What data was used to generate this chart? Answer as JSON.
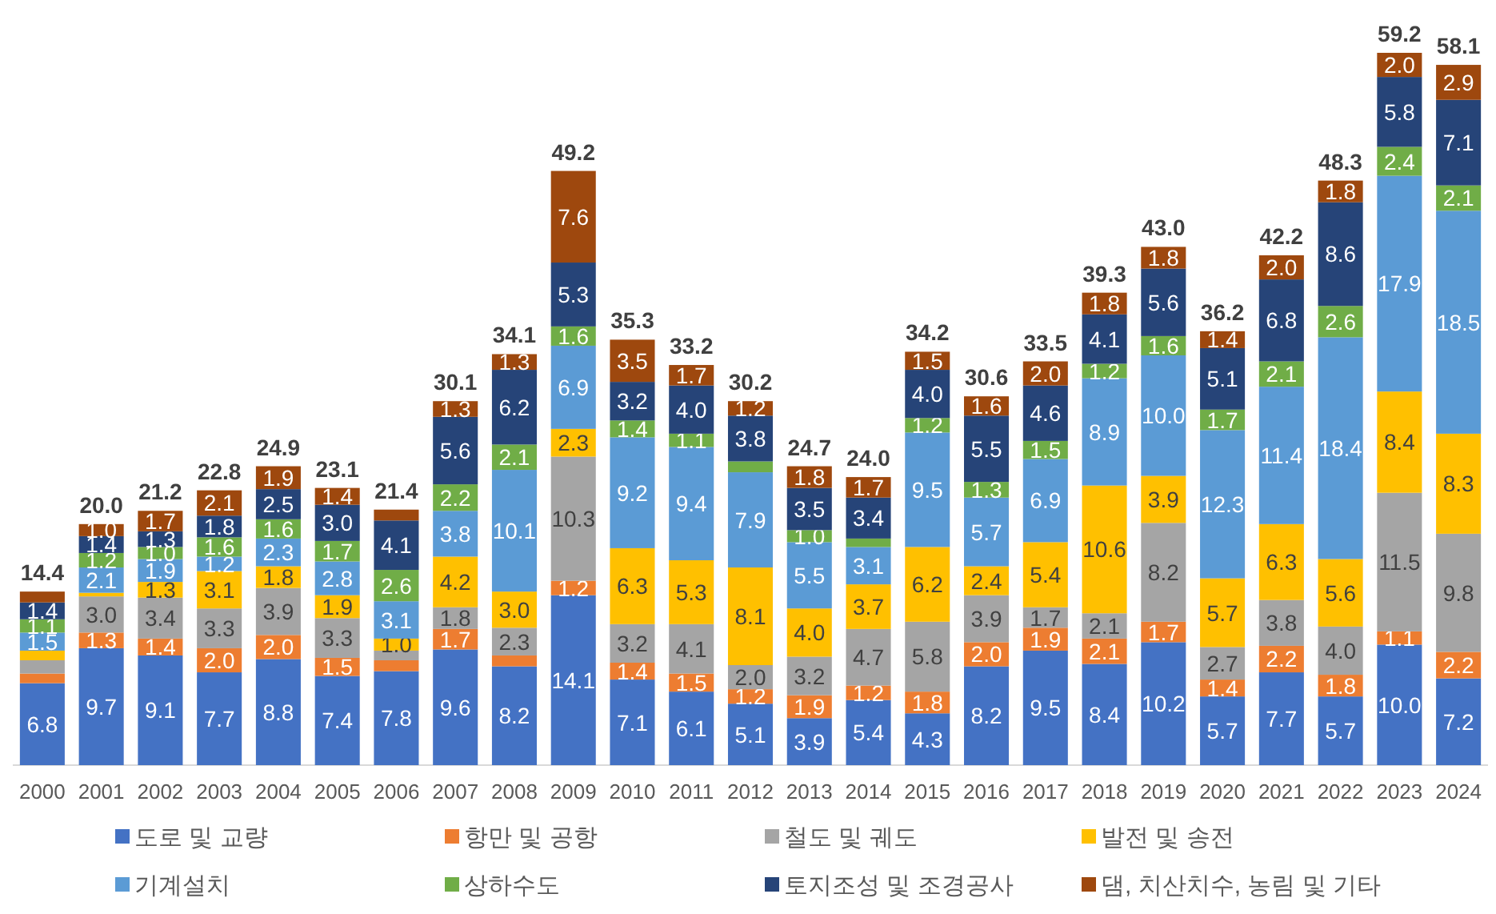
{
  "chart_data": {
    "type": "bar",
    "stacked": true,
    "legend": "bottom",
    "categories": [
      "2000",
      "2001",
      "2002",
      "2003",
      "2004",
      "2005",
      "2006",
      "2007",
      "2008",
      "2009",
      "2010",
      "2011",
      "2012",
      "2013",
      "2014",
      "2015",
      "2016",
      "2017",
      "2018",
      "2019",
      "2020",
      "2021",
      "2022",
      "2023",
      "2024"
    ],
    "series": [
      {
        "name": "도로 및 교량",
        "color": "#4472c4",
        "values": [
          6.8,
          9.7,
          9.1,
          7.7,
          8.8,
          7.4,
          7.8,
          9.6,
          8.2,
          14.1,
          7.1,
          6.1,
          5.1,
          3.9,
          5.4,
          4.3,
          8.2,
          9.5,
          8.4,
          10.2,
          5.7,
          7.7,
          5.7,
          10.0,
          7.2
        ],
        "value_labels": [
          "6.8",
          "9.7",
          "9.1",
          "7.7",
          "8.8",
          "7.4",
          "7.8",
          "9.6",
          "8.2",
          "14.1",
          "7.1",
          "6.1",
          "5.1",
          "3.9",
          "5.4",
          "4.3",
          "8.2",
          "9.5",
          "8.4",
          "10.2",
          "5.7",
          "7.7",
          "5.7",
          "10.0",
          "7.2"
        ]
      },
      {
        "name": "항만 및 공항",
        "color": "#ed7d31",
        "values": [
          0.8,
          1.3,
          1.4,
          2.0,
          2.0,
          1.5,
          0.9,
          1.7,
          0.9,
          1.2,
          1.4,
          1.5,
          1.2,
          1.9,
          1.2,
          1.8,
          2.0,
          1.9,
          2.1,
          1.7,
          1.4,
          2.2,
          1.8,
          1.1,
          2.2
        ],
        "value_labels": [
          null,
          "1.3",
          "1.4",
          "2.0",
          "2.0",
          "1.5",
          null,
          "1.7",
          null,
          "1.2",
          "1.4",
          "1.5",
          "1.2",
          "1.9",
          "1.2",
          "1.8",
          "2.0",
          "1.9",
          "2.1",
          "1.7",
          "1.4",
          "2.2",
          "1.8",
          "1.1",
          "2.2"
        ]
      },
      {
        "name": "철도 및 궤도",
        "color": "#a5a5a5",
        "values": [
          1.1,
          3.0,
          3.4,
          3.3,
          3.9,
          3.3,
          0.8,
          1.8,
          2.3,
          10.3,
          3.2,
          4.1,
          2.0,
          3.2,
          4.7,
          5.8,
          3.9,
          1.7,
          2.1,
          8.2,
          2.7,
          3.8,
          4.0,
          11.5,
          9.8
        ],
        "value_labels": [
          null,
          "3.0",
          "3.4",
          "3.3",
          "3.9",
          "3.3",
          null,
          "1.8",
          "2.3",
          "10.3",
          "3.2",
          "4.1",
          "2.0",
          "3.2",
          "4.7",
          "5.8",
          "3.9",
          "1.7",
          "2.1",
          "8.2",
          "2.7",
          "3.8",
          "4.0",
          "11.5",
          "9.8"
        ]
      },
      {
        "name": "발전 및 송전",
        "color": "#ffc000",
        "values": [
          0.8,
          0.3,
          1.3,
          3.1,
          1.8,
          1.9,
          1.0,
          4.2,
          3.0,
          2.3,
          6.3,
          5.3,
          8.1,
          4.0,
          3.7,
          6.2,
          2.4,
          5.4,
          10.6,
          3.9,
          5.7,
          6.3,
          5.6,
          8.4,
          8.3
        ],
        "value_labels": [
          null,
          null,
          "1.3",
          "3.1",
          "1.8",
          "1.9",
          "1.0",
          "4.2",
          "3.0",
          "2.3",
          "6.3",
          "5.3",
          "8.1",
          "4.0",
          "3.7",
          "6.2",
          "2.4",
          "5.4",
          "10.6",
          "3.9",
          "5.7",
          "6.3",
          "5.6",
          "8.4",
          "8.3"
        ]
      },
      {
        "name": "기계설치",
        "color": "#5b9bd5",
        "values": [
          1.5,
          2.1,
          1.9,
          1.2,
          2.3,
          2.8,
          3.1,
          3.8,
          10.1,
          6.9,
          9.2,
          9.4,
          7.9,
          5.5,
          3.1,
          9.5,
          5.7,
          6.9,
          8.9,
          10.0,
          12.3,
          11.4,
          18.4,
          17.9,
          18.5
        ],
        "value_labels": [
          "1.5",
          "2.1",
          "1.9",
          "1.2",
          "2.3",
          "2.8",
          "3.1",
          "3.8",
          "10.1",
          "6.9",
          "9.2",
          "9.4",
          "7.9",
          "5.5",
          "3.1",
          "9.5",
          "5.7",
          "6.9",
          "8.9",
          "10.0",
          "12.3",
          "11.4",
          "18.4",
          "17.9",
          "18.5"
        ]
      },
      {
        "name": "상하수도",
        "color": "#70ad47",
        "values": [
          1.1,
          1.2,
          1.0,
          1.6,
          1.6,
          1.7,
          2.6,
          2.2,
          2.1,
          1.6,
          1.4,
          1.1,
          0.9,
          1.0,
          0.7,
          1.2,
          1.3,
          1.5,
          1.2,
          1.6,
          1.7,
          2.1,
          2.6,
          2.4,
          2.1
        ],
        "value_labels": [
          "1.1",
          "1.2",
          "1.0",
          "1.6",
          "1.6",
          "1.7",
          "2.6",
          "2.2",
          "2.1",
          "1.6",
          "1.4",
          "1.1",
          null,
          "1.0",
          null,
          "1.2",
          "1.3",
          "1.5",
          "1.2",
          "1.6",
          "1.7",
          "2.1",
          "2.6",
          "2.4",
          "2.1"
        ]
      },
      {
        "name": "토지조성 및 조경공사",
        "color": "#264478",
        "values": [
          1.4,
          1.4,
          1.3,
          1.8,
          2.5,
          3.0,
          4.1,
          5.6,
          6.2,
          5.3,
          3.2,
          4.0,
          3.8,
          3.5,
          3.4,
          4.0,
          5.5,
          4.6,
          4.1,
          5.6,
          5.1,
          6.8,
          8.6,
          5.8,
          7.1
        ],
        "value_labels": [
          "1.4",
          "1.4",
          "1.3",
          "1.8",
          "2.5",
          "3.0",
          "4.1",
          "5.6",
          "6.2",
          "5.3",
          "3.2",
          "4.0",
          "3.8",
          "3.5",
          "3.4",
          "4.0",
          "5.5",
          "4.6",
          "4.1",
          "5.6",
          "5.1",
          "6.8",
          "8.6",
          "5.8",
          "7.1"
        ]
      },
      {
        "name": "댐, 치산치수, 농림 및 기타",
        "color": "#9e480e",
        "values": [
          0.9,
          1.0,
          1.7,
          2.1,
          1.9,
          1.4,
          0.9,
          1.3,
          1.3,
          7.6,
          3.5,
          1.7,
          1.2,
          1.8,
          1.7,
          1.5,
          1.6,
          2.0,
          1.8,
          1.8,
          1.4,
          2.0,
          1.8,
          2.0,
          2.9
        ],
        "value_labels": [
          null,
          "1.0",
          "1.7",
          "2.1",
          "1.9",
          "1.4",
          null,
          "1.3",
          "1.3",
          "7.6",
          "3.5",
          "1.7",
          "1.2",
          "1.8",
          "1.7",
          "1.5",
          "1.6",
          "2.0",
          "1.8",
          "1.8",
          "1.4",
          "2.0",
          "1.8",
          "2.0",
          "2.9"
        ]
      }
    ],
    "totals": [
      "14.4",
      "20.0",
      "21.2",
      "22.8",
      "24.9",
      "23.1",
      "21.4",
      "30.1",
      "34.1",
      "49.2",
      "35.3",
      "33.2",
      "30.2",
      "24.7",
      "24.0",
      "34.2",
      "30.6",
      "33.5",
      "39.3",
      "43.0",
      "36.2",
      "42.2",
      "48.3",
      "59.2",
      "58.1"
    ]
  }
}
